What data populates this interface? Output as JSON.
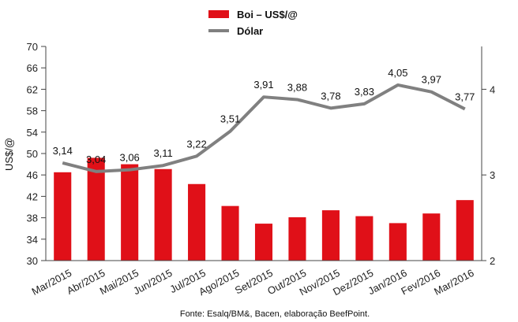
{
  "chart_data": {
    "type": "bar",
    "categories": [
      "Mar/2015",
      "Abr/2015",
      "Mai/2015",
      "Jun/2015",
      "Jul/2015",
      "Ago/2015",
      "Set/2015",
      "Out/2015",
      "Nov/2015",
      "Dez/2015",
      "Jan/2016",
      "Fev/2016",
      "Mar/2016"
    ],
    "series": [
      {
        "name": "Boi – US$/@",
        "type": "bar",
        "axis": "left",
        "color": "#e01018",
        "values": [
          46.5,
          49.2,
          48.0,
          47.1,
          44.3,
          40.2,
          36.9,
          38.1,
          39.4,
          38.3,
          37.0,
          38.8,
          41.3
        ]
      },
      {
        "name": "Dólar",
        "type": "line",
        "axis": "right",
        "color": "#808080",
        "values": [
          3.14,
          3.04,
          3.06,
          3.11,
          3.22,
          3.51,
          3.91,
          3.88,
          3.78,
          3.83,
          4.05,
          3.97,
          3.77
        ],
        "labels": [
          "3,14",
          "3,04",
          "3,06",
          "3,11",
          "3,22",
          "3,51",
          "3,91",
          "3,88",
          "3,78",
          "3,83",
          "4,05",
          "3,97",
          "3,77"
        ]
      }
    ],
    "ylabel": "US$/@",
    "ylim": [
      30,
      70
    ],
    "yticks": [
      "30",
      "34",
      "38",
      "42",
      "46",
      "50",
      "54",
      "58",
      "62",
      "66",
      "70"
    ],
    "y2lim": [
      2,
      4.5
    ],
    "y2ticks": [
      "2",
      "3",
      "4"
    ],
    "legend": "top-center",
    "grid": false
  },
  "source_note": "Fonte: Esalq/BM&, Bacen, elaboração BeefPoint."
}
